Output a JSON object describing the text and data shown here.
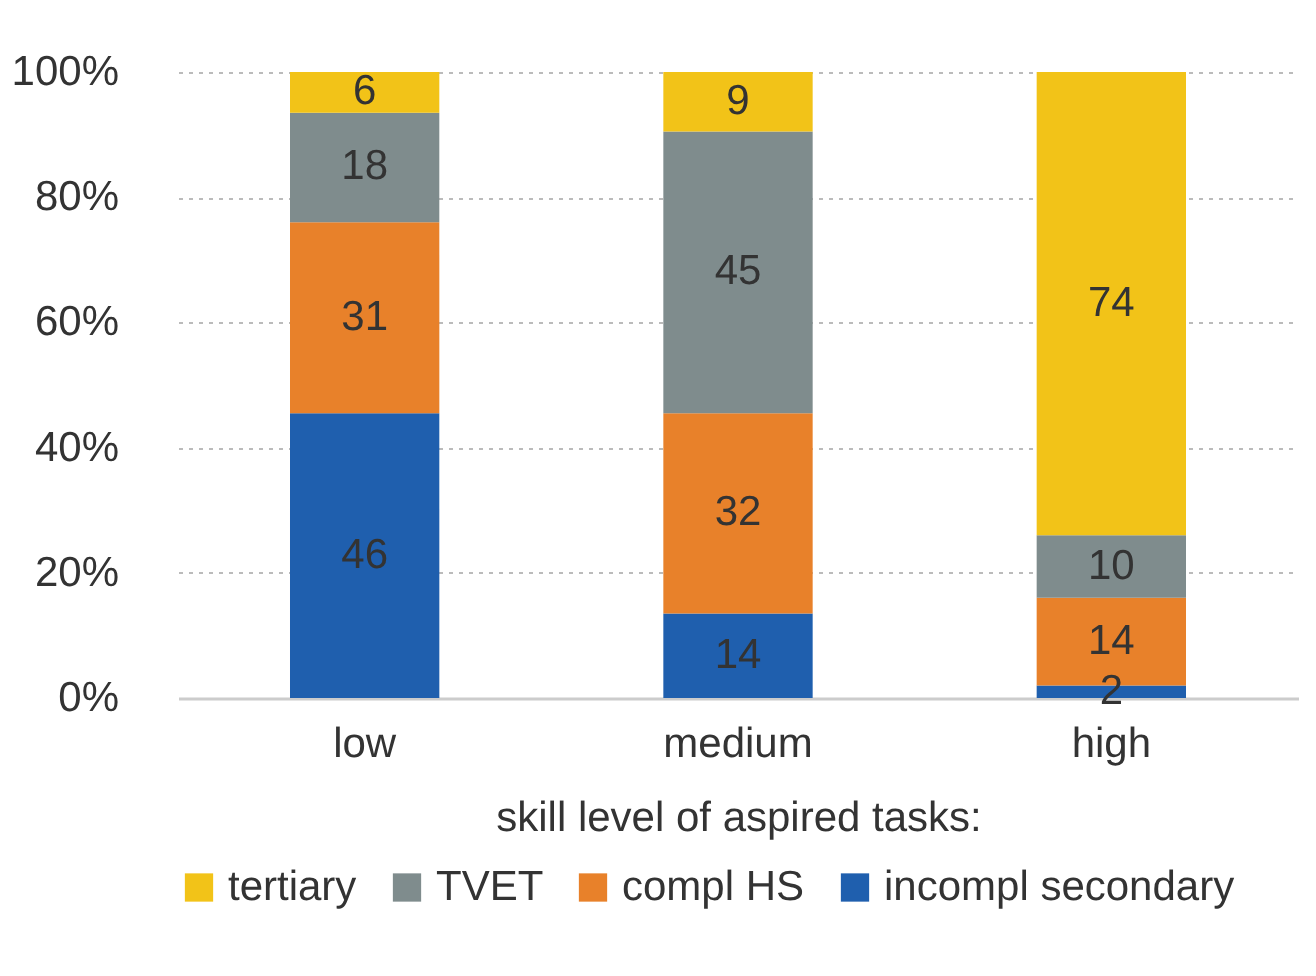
{
  "chart_data": {
    "type": "bar",
    "stacked": true,
    "xlabel": "skill level of aspired tasks:",
    "categories": [
      "low",
      "medium",
      "high"
    ],
    "series": [
      {
        "name": "incompl secondary",
        "color": "#1f5fae",
        "values": [
          45.5,
          13.5,
          2
        ],
        "value_labels": [
          "46",
          "14",
          "2"
        ]
      },
      {
        "name": "compl HS",
        "color": "#e8812a",
        "values": [
          30.5,
          32,
          14
        ],
        "value_labels": [
          "31",
          "32",
          "14"
        ]
      },
      {
        "name": "TVET",
        "color": "#7f8c8d",
        "values": [
          17.5,
          45,
          10
        ],
        "value_labels": [
          "18",
          "45",
          "10"
        ]
      },
      {
        "name": "tertiary",
        "color": "#f2c318",
        "values": [
          6.5,
          9.5,
          74
        ],
        "value_labels": [
          "6",
          "9",
          "74"
        ]
      }
    ],
    "ylim": [
      0,
      100
    ],
    "yticks": [
      {
        "value": 0,
        "label": "0%"
      },
      {
        "value": 20,
        "label": "20%"
      },
      {
        "value": 40,
        "label": "40%"
      },
      {
        "value": 60,
        "label": "60%"
      },
      {
        "value": 80,
        "label": "80%"
      },
      {
        "value": 100,
        "label": "100%"
      }
    ],
    "grid": "y",
    "legend": "bottom"
  }
}
